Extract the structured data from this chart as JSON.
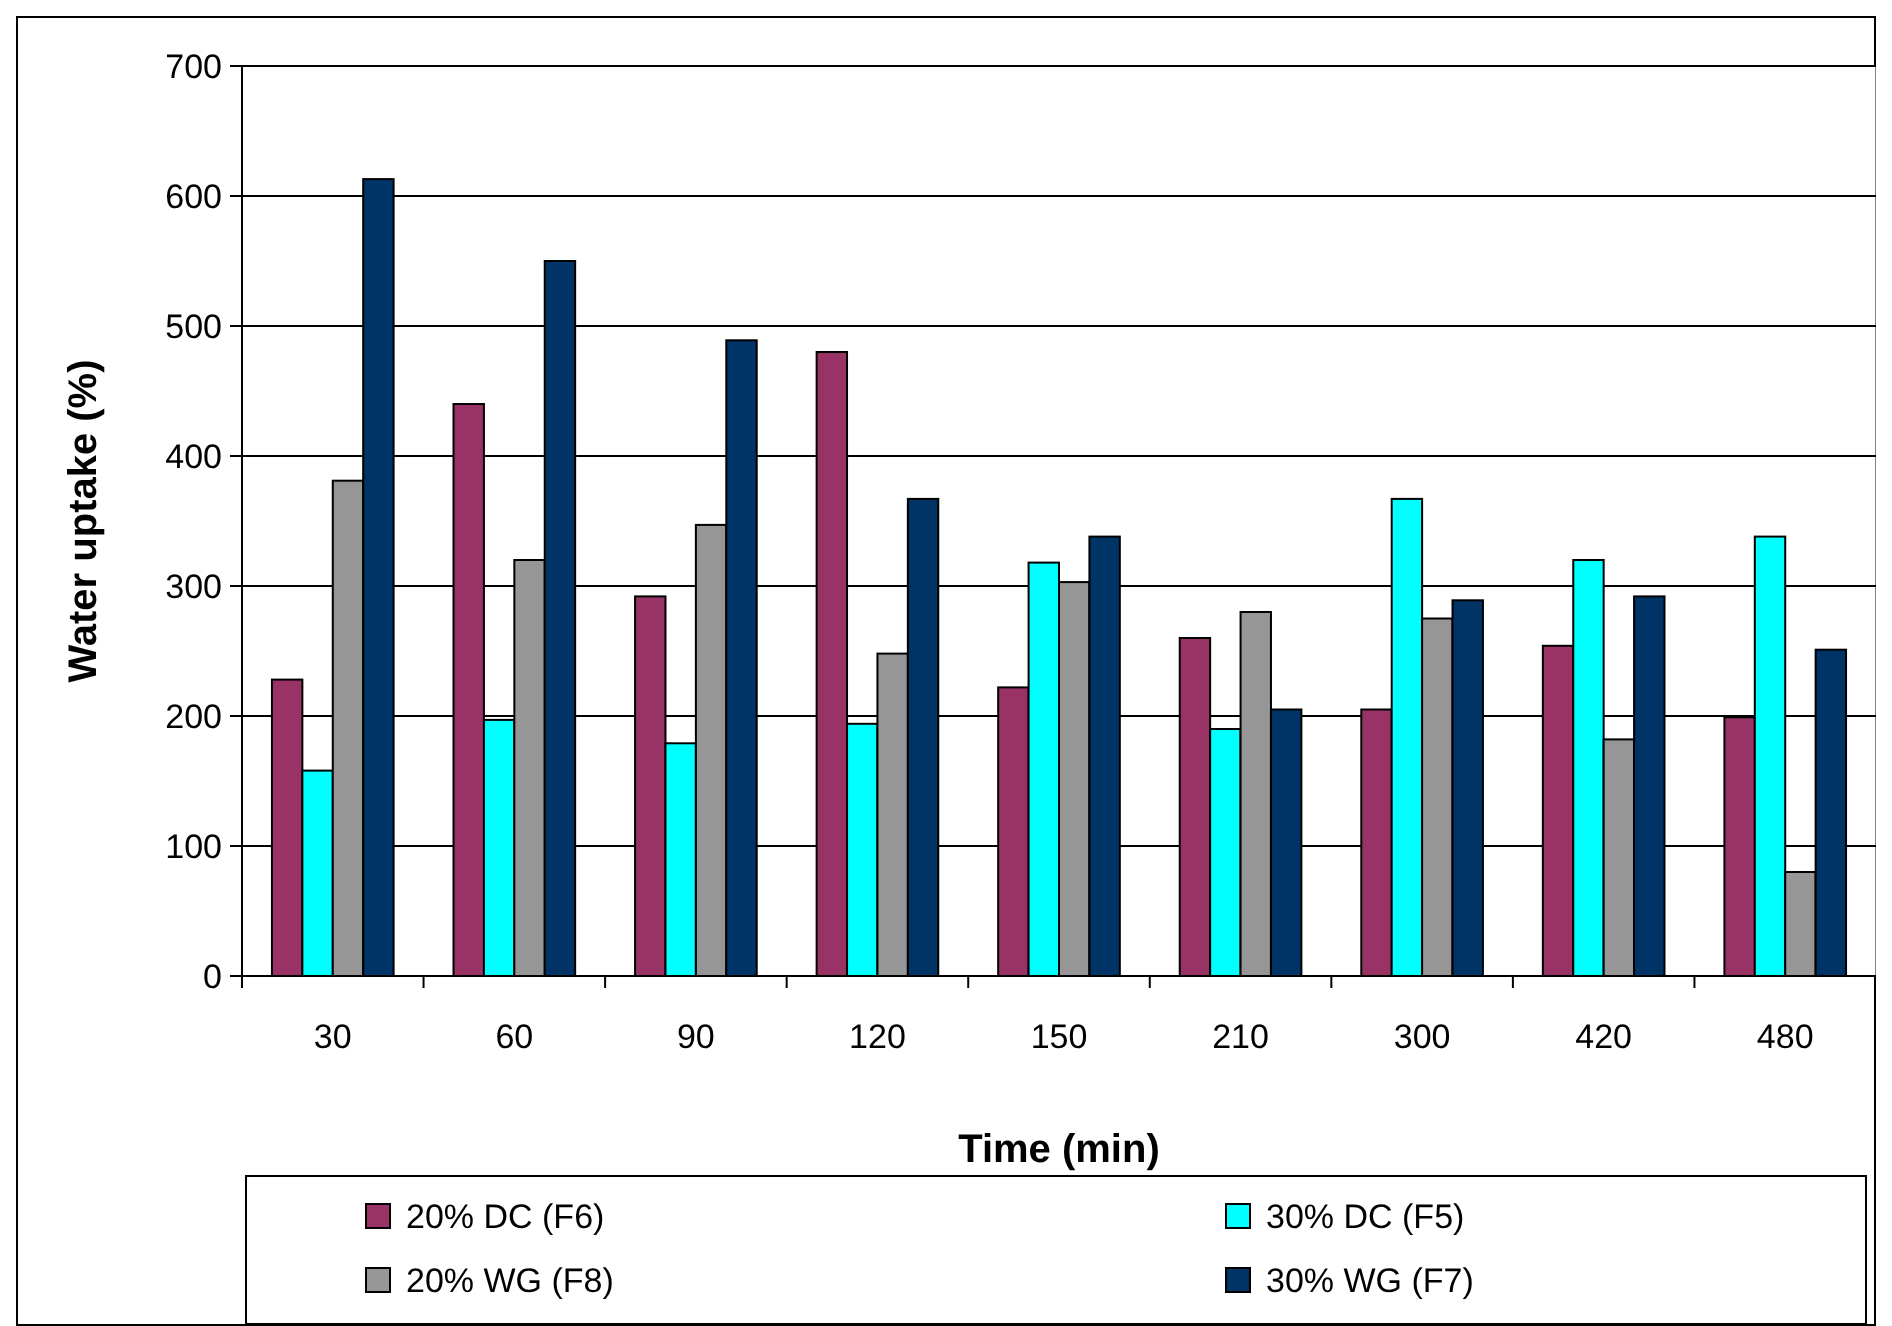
{
  "chart_data": {
    "type": "bar",
    "xlabel": "Time (min)",
    "ylabel": "Water uptake (%)",
    "categories": [
      "30",
      "60",
      "90",
      "120",
      "150",
      "210",
      "300",
      "420",
      "480"
    ],
    "series": [
      {
        "name": "20% DC (F6)",
        "color": "#993366",
        "values": [
          228,
          440,
          292,
          480,
          222,
          260,
          205,
          254,
          199
        ]
      },
      {
        "name": "30% DC (F5)",
        "color": "#00ffff",
        "values": [
          158,
          197,
          179,
          194,
          318,
          190,
          367,
          320,
          338
        ]
      },
      {
        "name": "20% WG (F8)",
        "color": "#969696",
        "values": [
          381,
          320,
          347,
          248,
          303,
          280,
          275,
          182,
          80
        ]
      },
      {
        "name": "30% WG (F7)",
        "color": "#003366",
        "values": [
          613,
          550,
          489,
          367,
          338,
          205,
          289,
          292,
          251
        ]
      }
    ],
    "ylim": [
      0,
      700
    ],
    "yticks": [
      0,
      100,
      200,
      300,
      400,
      500,
      600,
      700
    ],
    "grid": "y",
    "legend": "bottom"
  }
}
